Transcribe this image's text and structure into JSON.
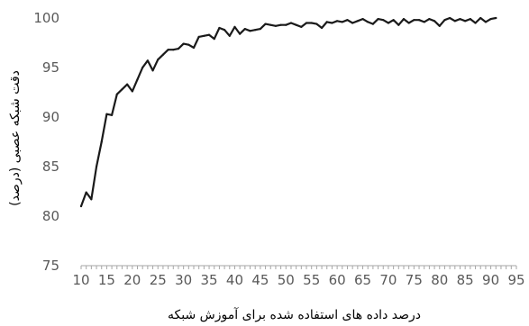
{
  "chart_data": {
    "type": "line",
    "title": "",
    "xlabel": "درصد داده های استفاده شده برای آموزش شبکه",
    "ylabel": "دقت شبکه عصبی (درصد)",
    "xlim": [
      10,
      95
    ],
    "ylim": [
      75,
      100
    ],
    "x_ticks": [
      10,
      15,
      20,
      25,
      30,
      35,
      40,
      45,
      50,
      55,
      60,
      65,
      70,
      75,
      80,
      85,
      90,
      95
    ],
    "y_ticks": [
      75,
      80,
      85,
      90,
      95,
      100
    ],
    "grid": false,
    "legend": "none",
    "line_color": "#1a1a1a",
    "series": [
      {
        "values": [
          [
            10,
            81.0
          ],
          [
            11,
            82.4
          ],
          [
            12,
            81.7
          ],
          [
            13,
            85.0
          ],
          [
            14,
            87.5
          ],
          [
            15,
            90.3
          ],
          [
            16,
            90.2
          ],
          [
            17,
            92.3
          ],
          [
            18,
            92.8
          ],
          [
            19,
            93.3
          ],
          [
            20,
            92.6
          ],
          [
            21,
            93.8
          ],
          [
            22,
            95.0
          ],
          [
            23,
            95.7
          ],
          [
            24,
            94.7
          ],
          [
            25,
            95.8
          ],
          [
            26,
            96.3
          ],
          [
            27,
            96.8
          ],
          [
            28,
            96.8
          ],
          [
            29,
            96.9
          ],
          [
            30,
            97.4
          ],
          [
            31,
            97.3
          ],
          [
            32,
            97.0
          ],
          [
            33,
            98.1
          ],
          [
            34,
            98.2
          ],
          [
            35,
            98.3
          ],
          [
            36,
            97.9
          ],
          [
            37,
            99.0
          ],
          [
            38,
            98.8
          ],
          [
            39,
            98.2
          ],
          [
            40,
            99.1
          ],
          [
            41,
            98.4
          ],
          [
            42,
            98.9
          ],
          [
            43,
            98.7
          ],
          [
            44,
            98.8
          ],
          [
            45,
            98.9
          ],
          [
            46,
            99.4
          ],
          [
            47,
            99.3
          ],
          [
            48,
            99.2
          ],
          [
            49,
            99.3
          ],
          [
            50,
            99.3
          ],
          [
            51,
            99.5
          ],
          [
            52,
            99.3
          ],
          [
            53,
            99.1
          ],
          [
            54,
            99.5
          ],
          [
            55,
            99.5
          ],
          [
            56,
            99.4
          ],
          [
            57,
            99.0
          ],
          [
            58,
            99.6
          ],
          [
            59,
            99.5
          ],
          [
            60,
            99.7
          ],
          [
            61,
            99.6
          ],
          [
            62,
            99.8
          ],
          [
            63,
            99.5
          ],
          [
            64,
            99.7
          ],
          [
            65,
            99.9
          ],
          [
            66,
            99.6
          ],
          [
            67,
            99.4
          ],
          [
            68,
            99.9
          ],
          [
            69,
            99.8
          ],
          [
            70,
            99.5
          ],
          [
            71,
            99.8
          ],
          [
            72,
            99.3
          ],
          [
            73,
            99.9
          ],
          [
            74,
            99.5
          ],
          [
            75,
            99.8
          ],
          [
            76,
            99.8
          ],
          [
            77,
            99.6
          ],
          [
            78,
            99.9
          ],
          [
            79,
            99.7
          ],
          [
            80,
            99.2
          ],
          [
            81,
            99.8
          ],
          [
            82,
            100.0
          ],
          [
            83,
            99.7
          ],
          [
            84,
            99.9
          ],
          [
            85,
            99.7
          ],
          [
            86,
            99.9
          ],
          [
            87,
            99.5
          ],
          [
            88,
            100.0
          ],
          [
            89,
            99.6
          ],
          [
            90,
            99.9
          ],
          [
            91,
            100.0
          ]
        ]
      }
    ]
  }
}
